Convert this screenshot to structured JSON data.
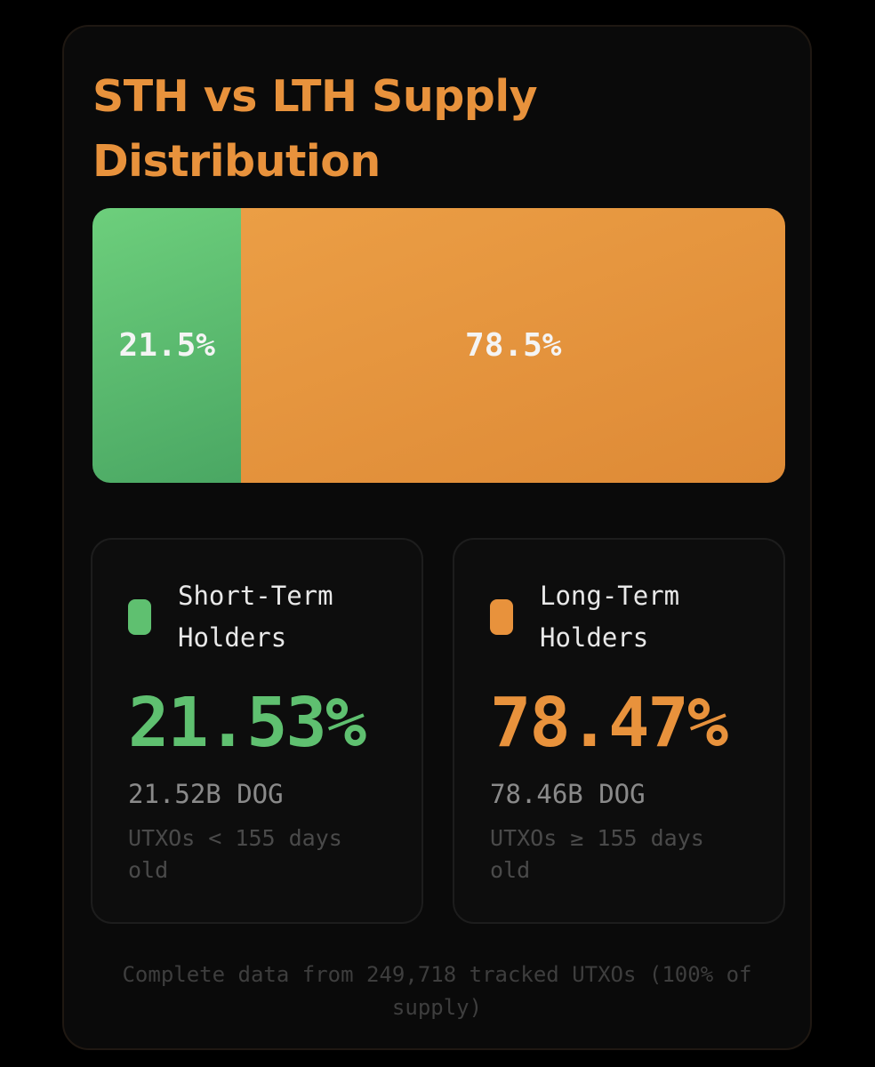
{
  "title": "STH vs LTH Supply Distribution",
  "colors": {
    "sth": "#5fc070",
    "lth": "#e8923c",
    "title": "#e8923c",
    "background": "#0a0a0a"
  },
  "distribution_bar": {
    "sth_share": 21.5,
    "lth_share": 78.5,
    "sth_label": "21.5%",
    "lth_label": "78.5%"
  },
  "sth": {
    "label": "Short-Term Holders",
    "percent": "21.53%",
    "amount": "21.52B DOG",
    "description": "UTXOs < 155 days old"
  },
  "lth": {
    "label": "Long-Term Holders",
    "percent": "78.47%",
    "amount": "78.46B DOG",
    "description": "UTXOs ≥ 155 days old"
  },
  "footer": "Complete data from 249,718 tracked UTXOs (100% of supply)"
}
